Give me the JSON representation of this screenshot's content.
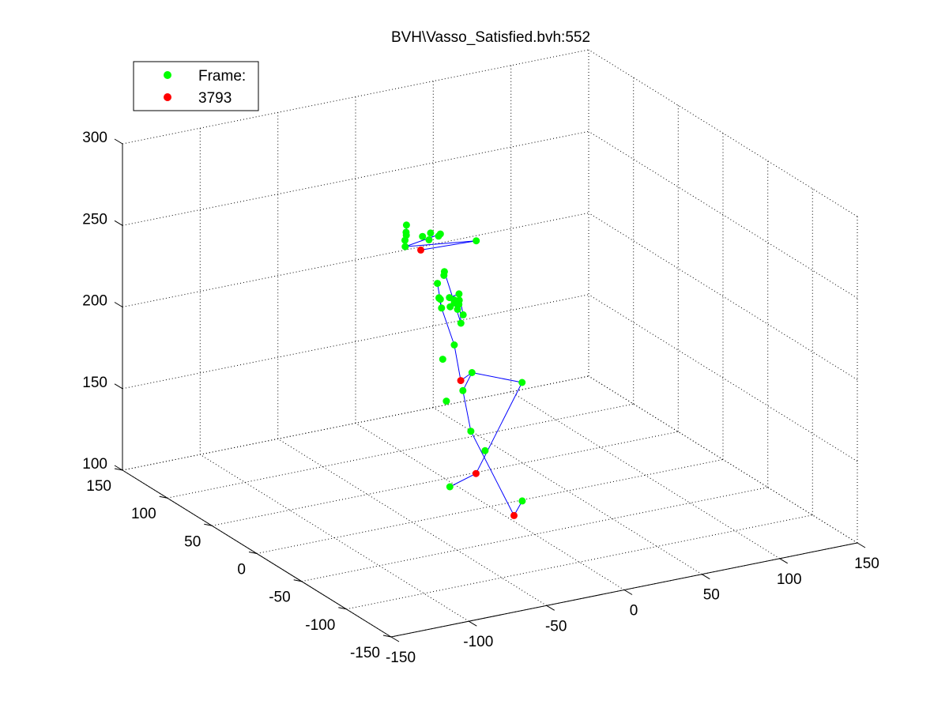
{
  "chart_data": {
    "type": "scatter",
    "title": "BVH\\Vasso_Satisfied.bvh:552",
    "xlabel": "",
    "ylabel": "",
    "zlabel": "",
    "xlim": [
      -150,
      150
    ],
    "ylim": [
      -150,
      150
    ],
    "zlim": [
      100,
      300
    ],
    "grid": true,
    "legend_position": "top-left",
    "colors": {
      "joints": "#00ff00",
      "markers": "#ff0000",
      "bones": "#0000ff",
      "grid": "#000000"
    },
    "ticks": {
      "x_labels": [
        "-150",
        "-100",
        "-50",
        "0",
        "50",
        "100",
        "150"
      ],
      "y_labels": [
        "-150",
        "-100",
        "-50",
        "0",
        "50",
        "100",
        "150"
      ],
      "z_labels": [
        "100",
        "150",
        "200",
        "250",
        "300"
      ]
    },
    "legend": [
      {
        "label": "Frame:",
        "color": "#00ff00"
      },
      {
        "label": "3793",
        "color": "#ff0000"
      }
    ],
    "series": [
      {
        "name": "Frame:",
        "color": "#00ff00",
        "points": [
          [
            -22,
            55,
            258
          ],
          [
            -25,
            50,
            254
          ],
          [
            -28,
            46,
            249
          ],
          [
            -27,
            48,
            252
          ],
          [
            -24,
            52,
            255
          ],
          [
            -10,
            40,
            254
          ],
          [
            -14,
            42,
            256
          ],
          [
            -18,
            44,
            254
          ],
          [
            -15,
            42,
            252
          ],
          [
            -10,
            38,
            256
          ],
          [
            20,
            50,
            242
          ],
          [
            -12,
            30,
            236
          ],
          [
            -10,
            34,
            232
          ],
          [
            -13,
            36,
            227
          ],
          [
            -20,
            22,
            224
          ],
          [
            -15,
            28,
            215
          ],
          [
            -6,
            34,
            212
          ],
          [
            -10,
            38,
            216
          ],
          [
            -12,
            36,
            218
          ],
          [
            -6,
            22,
            206
          ],
          [
            -5,
            26,
            216
          ],
          [
            -7,
            24,
            214
          ],
          [
            0,
            40,
            213
          ],
          [
            -3,
            40,
            215
          ],
          [
            2,
            38,
            217
          ],
          [
            1,
            36,
            214
          ],
          [
            -1,
            38,
            212
          ],
          [
            3,
            35,
            205
          ],
          [
            -16,
            12,
            198
          ],
          [
            -20,
            18,
            188
          ],
          [
            -15,
            -6,
            187
          ],
          [
            -28,
            0,
            170
          ],
          [
            -22,
            -8,
            178
          ],
          [
            8,
            -22,
            182
          ],
          [
            -25,
            -38,
            152
          ],
          [
            -50,
            -42,
            136
          ],
          [
            -18,
            -10,
            153
          ],
          [
            -8,
            -50,
            122
          ]
        ]
      },
      {
        "name": "3793",
        "color": "#ff0000",
        "points": [
          [
            -18,
            46,
            245
          ],
          [
            -28,
            -16,
            188
          ],
          [
            -32,
            -40,
            140
          ],
          [
            -26,
            -72,
            124
          ]
        ]
      }
    ],
    "bones": [
      [
        [
          -22,
          55,
          258
        ],
        [
          -25,
          50,
          254
        ]
      ],
      [
        [
          -25,
          50,
          254
        ],
        [
          -28,
          46,
          249
        ]
      ],
      [
        [
          -28,
          46,
          249
        ],
        [
          20,
          50,
          242
        ]
      ],
      [
        [
          20,
          50,
          242
        ],
        [
          -18,
          46,
          245
        ]
      ],
      [
        [
          -28,
          46,
          249
        ],
        [
          -10,
          38,
          256
        ]
      ],
      [
        [
          -13,
          36,
          227
        ],
        [
          -15,
          28,
          215
        ]
      ],
      [
        [
          -15,
          28,
          215
        ],
        [
          -20,
          22,
          224
        ]
      ],
      [
        [
          -12,
          30,
          236
        ],
        [
          -6,
          22,
          206
        ]
      ],
      [
        [
          -6,
          22,
          206
        ],
        [
          2,
          38,
          217
        ]
      ],
      [
        [
          2,
          38,
          217
        ],
        [
          -3,
          40,
          215
        ]
      ],
      [
        [
          2,
          38,
          217
        ],
        [
          3,
          35,
          205
        ]
      ],
      [
        [
          -15,
          28,
          215
        ],
        [
          -16,
          12,
          198
        ]
      ],
      [
        [
          -16,
          12,
          198
        ],
        [
          -28,
          -16,
          188
        ]
      ],
      [
        [
          -28,
          -16,
          188
        ],
        [
          -15,
          -6,
          187
        ]
      ],
      [
        [
          -15,
          -6,
          187
        ],
        [
          -22,
          -8,
          178
        ]
      ],
      [
        [
          -15,
          -6,
          187
        ],
        [
          8,
          -22,
          182
        ]
      ],
      [
        [
          8,
          -22,
          182
        ],
        [
          -32,
          -40,
          140
        ]
      ],
      [
        [
          -32,
          -40,
          140
        ],
        [
          -50,
          -42,
          136
        ]
      ],
      [
        [
          -22,
          -8,
          178
        ],
        [
          -18,
          -10,
          153
        ]
      ],
      [
        [
          -18,
          -10,
          153
        ],
        [
          -26,
          -72,
          124
        ]
      ],
      [
        [
          -26,
          -72,
          124
        ],
        [
          -8,
          -50,
          122
        ]
      ]
    ]
  }
}
